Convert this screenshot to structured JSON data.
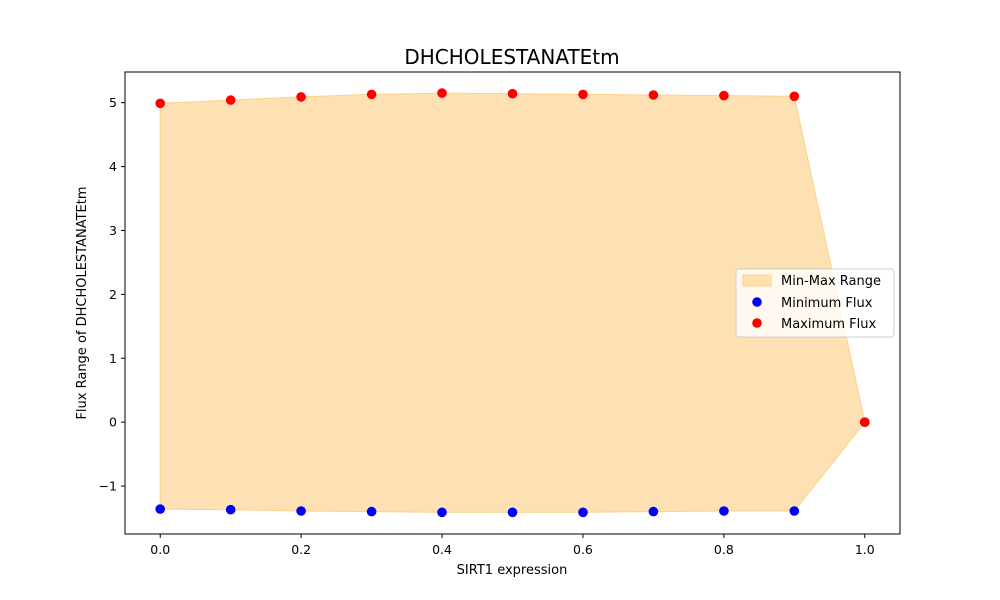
{
  "chart_data": {
    "type": "scatter",
    "title": "DHCHOLESTANATEtm",
    "xlabel": "SIRT1 expression",
    "ylabel": "Flux Range of DHCHOLESTANATEtm",
    "xlim": [
      -0.05,
      1.05
    ],
    "ylim": [
      -1.75,
      5.48
    ],
    "x": [
      0.0,
      0.1,
      0.2,
      0.3,
      0.4,
      0.5,
      0.6,
      0.7,
      0.8,
      0.9,
      1.0
    ],
    "series": [
      {
        "name": "Minimum Flux",
        "kind": "points",
        "color": "#0000ff",
        "values": [
          -1.36,
          -1.37,
          -1.39,
          -1.4,
          -1.41,
          -1.41,
          -1.41,
          -1.4,
          -1.39,
          -1.39,
          0.0
        ]
      },
      {
        "name": "Maximum Flux",
        "kind": "points",
        "color": "#ff0000",
        "values": [
          4.99,
          5.04,
          5.09,
          5.13,
          5.15,
          5.14,
          5.13,
          5.12,
          5.11,
          5.1,
          0.0
        ]
      }
    ],
    "fill": {
      "name": "Min-Max Range",
      "color": "#fdd18b",
      "opacity": 0.65,
      "between": [
        "Minimum Flux",
        "Maximum Flux"
      ]
    },
    "xticks": [
      0.0,
      0.2,
      0.4,
      0.6,
      0.8,
      1.0
    ],
    "xtick_labels": [
      "0.0",
      "0.2",
      "0.4",
      "0.6",
      "0.8",
      "1.0"
    ],
    "yticks": [
      -1,
      0,
      1,
      2,
      3,
      4,
      5
    ],
    "ytick_labels": [
      "−1",
      "0",
      "1",
      "2",
      "3",
      "4",
      "5"
    ],
    "legend": {
      "position": "center-right",
      "entries": [
        "Min-Max Range",
        "Minimum Flux",
        "Maximum Flux"
      ]
    },
    "grid": false
  }
}
